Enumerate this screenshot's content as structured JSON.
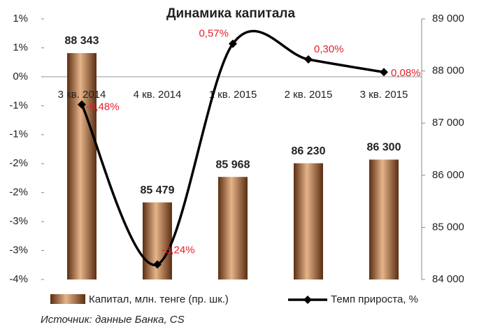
{
  "chart_data": {
    "type": "bar_line",
    "title": "Динамика капитала",
    "categories": [
      "3 кв. 2014",
      "4 кв. 2014",
      "1 кв. 2015",
      "2 кв. 2015",
      "3 кв. 2015"
    ],
    "series": [
      {
        "name": "Капитал, млн. тенге (пр. шк.)",
        "type": "bar",
        "axis": "y2",
        "color": "#a0643a",
        "values": [
          88343,
          85479,
          85968,
          86230,
          86300
        ],
        "value_labels": [
          "88 343",
          "85 479",
          "85 968",
          "86 230",
          "86 300"
        ]
      },
      {
        "name": "Темп прироста, %",
        "type": "line",
        "axis": "y",
        "color": "#000000",
        "values": [
          -0.48,
          -3.24,
          0.57,
          0.3,
          0.08
        ],
        "value_labels": [
          "-0,48%",
          "-3,24%",
          "0,57%",
          "0,30%",
          "0,08%"
        ]
      }
    ],
    "ylim": [
      -3.5,
      1.0
    ],
    "yticks": [
      {
        "value": 1.0,
        "label": "1%"
      },
      {
        "value": 0.5,
        "label": "1%"
      },
      {
        "value": 0,
        "label": "0%"
      },
      {
        "value": -0.5,
        "label": "-1%"
      },
      {
        "value": -1.0,
        "label": "-1%"
      },
      {
        "value": -1.5,
        "label": "-2%"
      },
      {
        "value": -2.0,
        "label": "-2%"
      },
      {
        "value": -2.5,
        "label": "-3%"
      },
      {
        "value": -3.0,
        "label": "-3%"
      },
      {
        "value": -3.5,
        "label": "-4%"
      }
    ],
    "y2lim": [
      84000,
      89000
    ],
    "y2ticks": [
      {
        "value": 84000,
        "label": "84 000"
      },
      {
        "value": 85000,
        "label": "85 000"
      },
      {
        "value": 86000,
        "label": "86 000"
      },
      {
        "value": 87000,
        "label": "87 000"
      },
      {
        "value": 88000,
        "label": "88 000"
      },
      {
        "value": 89000,
        "label": "89 000"
      }
    ],
    "source": "Источник: данные Банка, CS"
  }
}
